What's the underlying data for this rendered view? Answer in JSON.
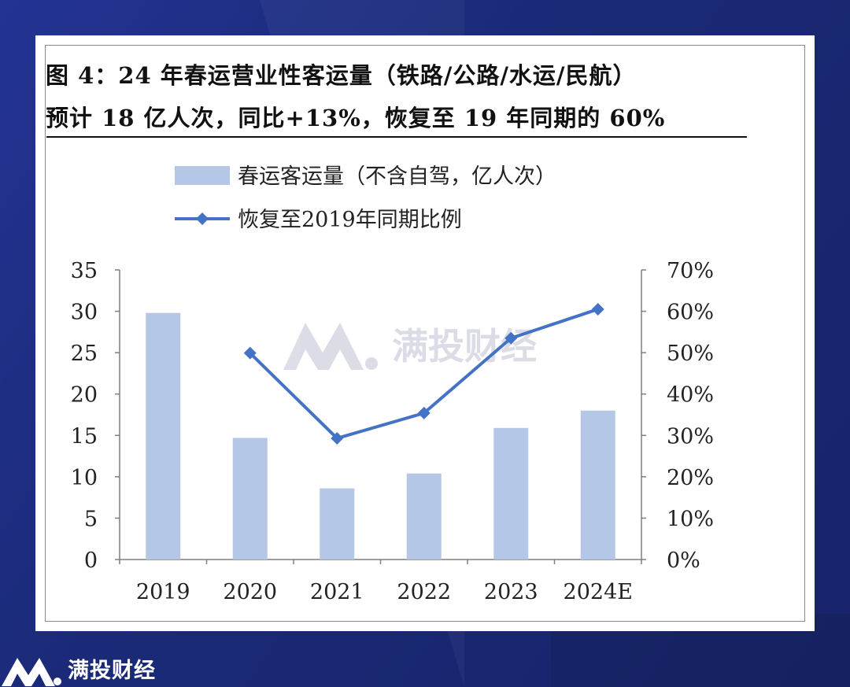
{
  "title_line1": "图 4：24 年春运营业性客运量（铁路/公路/水运/民航）",
  "title_line2": "预计 18 亿人次，同比+13%，恢复至 19 年同期的 60%",
  "watermark": "满投财经",
  "footer_brand": "满投财经",
  "colors": {
    "bar": "#b4c7e7",
    "line": "#4472c4",
    "background": "#1b2a78"
  },
  "chart_data": {
    "type": "bar",
    "categories": [
      "2019",
      "2020",
      "2021",
      "2022",
      "2023",
      "2024E"
    ],
    "series": [
      {
        "name": "春运客运量（不含自驾，亿人次）",
        "type": "bar",
        "axis": "left",
        "values": [
          29.8,
          14.7,
          8.6,
          10.4,
          15.9,
          18.0
        ]
      },
      {
        "name": "恢复至2019年同期比例",
        "type": "line",
        "axis": "right",
        "marker": "diamond",
        "values": [
          null,
          0.499,
          0.293,
          0.354,
          0.535,
          0.605
        ]
      }
    ],
    "ylim_left": [
      0,
      35
    ],
    "yticks_left": [
      "0",
      "5",
      "10",
      "15",
      "20",
      "25",
      "30",
      "35"
    ],
    "ylim_right": [
      0,
      0.7
    ],
    "yticks_right": [
      "0%",
      "10%",
      "20%",
      "30%",
      "40%",
      "50%",
      "60%",
      "70%"
    ],
    "legend_position": "top-left",
    "grid": false
  }
}
